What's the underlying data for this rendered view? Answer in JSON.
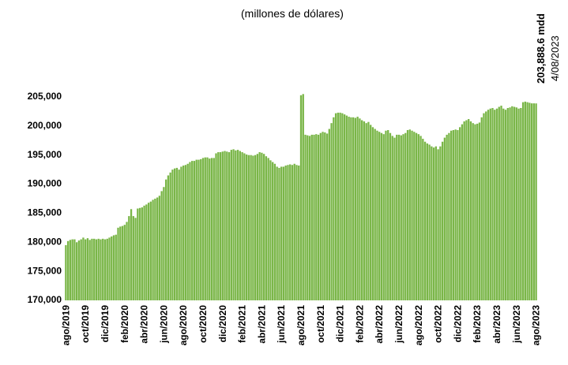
{
  "chart_data": {
    "type": "bar",
    "subtitle": "(millones de dólares)",
    "annotation": {
      "label": "203,888.6 mdd",
      "date": "4/08/2023"
    },
    "color": "#7ab648",
    "categories": [
      "ago/2019",
      null,
      null,
      null,
      null,
      null,
      null,
      null,
      null,
      "oct/2019",
      null,
      null,
      null,
      null,
      null,
      null,
      null,
      null,
      "dic/2019",
      null,
      null,
      null,
      null,
      null,
      null,
      null,
      null,
      "feb/2020",
      null,
      null,
      null,
      null,
      null,
      null,
      null,
      null,
      "abr/2020",
      null,
      null,
      null,
      null,
      null,
      null,
      null,
      null,
      "jun/2020",
      null,
      null,
      null,
      null,
      null,
      null,
      null,
      null,
      "ago/2020",
      null,
      null,
      null,
      null,
      null,
      null,
      null,
      null,
      "oct/2020",
      null,
      null,
      null,
      null,
      null,
      null,
      null,
      null,
      "dic/2020",
      null,
      null,
      null,
      null,
      null,
      null,
      null,
      null,
      "feb/2021",
      null,
      null,
      null,
      null,
      null,
      null,
      null,
      null,
      "abr/2021",
      null,
      null,
      null,
      null,
      null,
      null,
      null,
      null,
      "jun/2021",
      null,
      null,
      null,
      null,
      null,
      null,
      null,
      null,
      "ago/2021",
      null,
      null,
      null,
      null,
      null,
      null,
      null,
      null,
      "oct/2021",
      null,
      null,
      null,
      null,
      null,
      null,
      null,
      null,
      "dic/2021",
      null,
      null,
      null,
      null,
      null,
      null,
      null,
      null,
      "feb/2022",
      null,
      null,
      null,
      null,
      null,
      null,
      null,
      null,
      "abr/2022",
      null,
      null,
      null,
      null,
      null,
      null,
      null,
      null,
      "jun/2022",
      null,
      null,
      null,
      null,
      null,
      null,
      null,
      null,
      "ago/2022",
      null,
      null,
      null,
      null,
      null,
      null,
      null,
      null,
      "oct/2022",
      null,
      null,
      null,
      null,
      null,
      null,
      null,
      null,
      "dic/2022",
      null,
      null,
      null,
      null,
      null,
      null,
      null,
      null,
      "feb/2023",
      null,
      null,
      null,
      null,
      null,
      null,
      null,
      null,
      "abr/2023",
      null,
      null,
      null,
      null,
      null,
      null,
      null,
      null,
      "jun/2023",
      null,
      null,
      null,
      null,
      null,
      null,
      null,
      null,
      "ago/2023"
    ],
    "values": [
      179500,
      180200,
      180400,
      180500,
      180500,
      180000,
      180300,
      180500,
      180800,
      180500,
      180700,
      180400,
      180600,
      180600,
      180500,
      180600,
      180500,
      180600,
      180500,
      180600,
      180800,
      181000,
      181200,
      181300,
      182500,
      182700,
      182800,
      183000,
      183500,
      184500,
      185700,
      184500,
      184200,
      185800,
      185900,
      186000,
      186300,
      186500,
      186800,
      187000,
      187300,
      187500,
      187700,
      188000,
      188800,
      189500,
      190800,
      191500,
      192000,
      192500,
      192700,
      192800,
      192500,
      193000,
      193200,
      193300,
      193500,
      193800,
      194000,
      194000,
      194200,
      194200,
      194300,
      194500,
      194600,
      194600,
      194400,
      194500,
      194500,
      195300,
      195500,
      195500,
      195600,
      195700,
      195600,
      195500,
      195900,
      196000,
      195800,
      195900,
      195700,
      195500,
      195300,
      195100,
      195000,
      195000,
      194900,
      195000,
      195200,
      195500,
      195400,
      195200,
      194800,
      194500,
      194100,
      193800,
      193500,
      193000,
      192800,
      193000,
      193000,
      193200,
      193300,
      193400,
      193300,
      193500,
      193300,
      193200,
      205300,
      205500,
      198500,
      198400,
      198300,
      198500,
      198500,
      198600,
      198500,
      198800,
      199000,
      198900,
      198700,
      199500,
      200500,
      201500,
      202200,
      202300,
      202300,
      202200,
      202000,
      201800,
      201600,
      201500,
      201500,
      201400,
      201600,
      201300,
      201000,
      200800,
      200500,
      200700,
      200200,
      199800,
      199500,
      199200,
      199000,
      198800,
      198600,
      199200,
      199300,
      198800,
      198300,
      198000,
      198500,
      198500,
      198400,
      198600,
      198800,
      199300,
      199400,
      199200,
      199000,
      198800,
      198600,
      198300,
      197800,
      197300,
      197000,
      196800,
      196500,
      196300,
      196500,
      196000,
      196500,
      197300,
      198000,
      198500,
      198800,
      199200,
      199300,
      199400,
      199300,
      199800,
      200300,
      200800,
      201000,
      201200,
      200800,
      200500,
      200300,
      200400,
      200600,
      201500,
      202200,
      202500,
      202800,
      203000,
      203100,
      202800,
      203000,
      203300,
      203500,
      203000,
      202800,
      203100,
      203200,
      203400,
      203300,
      203200,
      203000,
      203100,
      204100,
      204200,
      204100,
      204000,
      203900,
      203900,
      203888.6
    ],
    "ylim": [
      170000,
      205000
    ],
    "yticks": [
      {
        "value": 170000,
        "label": "170,000"
      },
      {
        "value": 175000,
        "label": "175,000"
      },
      {
        "value": 180000,
        "label": "180,000"
      },
      {
        "value": 185000,
        "label": "185,000"
      },
      {
        "value": 190000,
        "label": "190,000"
      },
      {
        "value": 195000,
        "label": "195,000"
      },
      {
        "value": 200000,
        "label": "200,000"
      },
      {
        "value": 205000,
        "label": "205,000"
      }
    ],
    "grid": false
  }
}
